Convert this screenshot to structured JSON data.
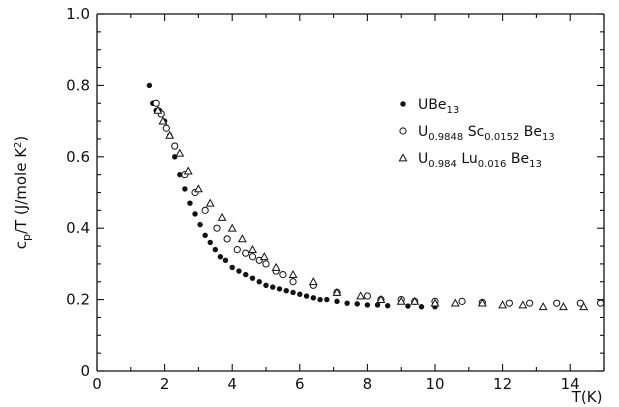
{
  "chart_data": {
    "type": "scatter",
    "xlabel": "T(K)",
    "ylabel_main": "c",
    "ylabel_sub": "p",
    "ylabel_rest": "/T (J/mole K",
    "ylabel_sup": "2",
    "ylabel_close": ")",
    "xlim": [
      0,
      15
    ],
    "ylim": [
      0,
      1.0
    ],
    "xticks": [
      0,
      2,
      4,
      6,
      8,
      10,
      12,
      14
    ],
    "yticks": [
      0,
      0.2,
      0.4,
      0.6,
      0.8,
      1.0
    ],
    "xtick_labels": [
      "0",
      "2",
      "4",
      "6",
      "8",
      "10",
      "12",
      "14"
    ],
    "ytick_labels": [
      "0",
      "0.2",
      "0.4",
      "0.6",
      "0.8",
      "1.0"
    ],
    "grid": false,
    "legend_position": "top-right",
    "series": [
      {
        "name": "UBe13",
        "label_parts": [
          [
            "U",
            ""
          ],
          [
            "Be",
            ""
          ],
          [
            "13",
            "sub"
          ]
        ],
        "marker": "filled-circle",
        "x": [
          1.55,
          1.65,
          1.75,
          1.85,
          2.0,
          2.15,
          2.3,
          2.45,
          2.6,
          2.75,
          2.9,
          3.05,
          3.2,
          3.35,
          3.5,
          3.65,
          3.8,
          4.0,
          4.2,
          4.4,
          4.6,
          4.8,
          5.0,
          5.2,
          5.4,
          5.6,
          5.8,
          6.0,
          6.2,
          6.4,
          6.6,
          6.8,
          7.1,
          7.4,
          7.7,
          8.0,
          8.3,
          8.6,
          9.2,
          9.6,
          10.0
        ],
        "y": [
          0.8,
          0.75,
          0.73,
          0.73,
          0.7,
          0.66,
          0.6,
          0.55,
          0.51,
          0.47,
          0.44,
          0.41,
          0.38,
          0.36,
          0.34,
          0.32,
          0.31,
          0.29,
          0.28,
          0.27,
          0.26,
          0.25,
          0.24,
          0.235,
          0.23,
          0.225,
          0.22,
          0.215,
          0.21,
          0.205,
          0.2,
          0.2,
          0.195,
          0.19,
          0.188,
          0.185,
          0.185,
          0.183,
          0.182,
          0.18,
          0.18
        ]
      },
      {
        "name": "U0.9848 Sc0.0152 Be13",
        "label_parts": [
          [
            "U",
            ""
          ],
          [
            "0.9848",
            "sub"
          ],
          [
            " Sc",
            ""
          ],
          [
            "0.0152",
            "sub"
          ],
          [
            " Be",
            ""
          ],
          [
            "13",
            "sub"
          ]
        ],
        "marker": "open-circle",
        "x": [
          1.75,
          1.9,
          2.05,
          2.3,
          2.6,
          2.9,
          3.2,
          3.55,
          3.85,
          4.15,
          4.4,
          4.6,
          4.8,
          5.0,
          5.3,
          5.5,
          5.8,
          6.4,
          7.1,
          8.0,
          8.4,
          9.0,
          9.4,
          10.0,
          10.8,
          11.4,
          12.2,
          12.8,
          13.6,
          14.3,
          14.9
        ],
        "y": [
          0.75,
          0.72,
          0.68,
          0.63,
          0.55,
          0.5,
          0.45,
          0.4,
          0.37,
          0.34,
          0.33,
          0.32,
          0.31,
          0.3,
          0.28,
          0.27,
          0.25,
          0.24,
          0.22,
          0.21,
          0.2,
          0.2,
          0.195,
          0.195,
          0.195,
          0.192,
          0.19,
          0.19,
          0.19,
          0.19,
          0.19
        ]
      },
      {
        "name": "U0.984 Lu0.016 Be13",
        "label_parts": [
          [
            "U",
            ""
          ],
          [
            "0.984",
            "sub"
          ],
          [
            " Lu",
            ""
          ],
          [
            "0.016",
            "sub"
          ],
          [
            " Be",
            ""
          ],
          [
            "13",
            "sub"
          ]
        ],
        "marker": "open-triangle",
        "x": [
          1.8,
          1.95,
          2.15,
          2.45,
          2.7,
          3.0,
          3.35,
          3.7,
          4.0,
          4.3,
          4.6,
          4.95,
          5.3,
          5.8,
          6.4,
          7.1,
          7.8,
          8.4,
          9.0,
          9.4,
          10.0,
          10.6,
          11.4,
          12.0,
          12.6,
          13.2,
          13.8,
          14.4
        ],
        "y": [
          0.73,
          0.7,
          0.66,
          0.61,
          0.56,
          0.51,
          0.47,
          0.43,
          0.4,
          0.37,
          0.34,
          0.32,
          0.29,
          0.27,
          0.25,
          0.22,
          0.21,
          0.2,
          0.195,
          0.195,
          0.19,
          0.19,
          0.19,
          0.185,
          0.185,
          0.18,
          0.18,
          0.18
        ]
      }
    ]
  }
}
